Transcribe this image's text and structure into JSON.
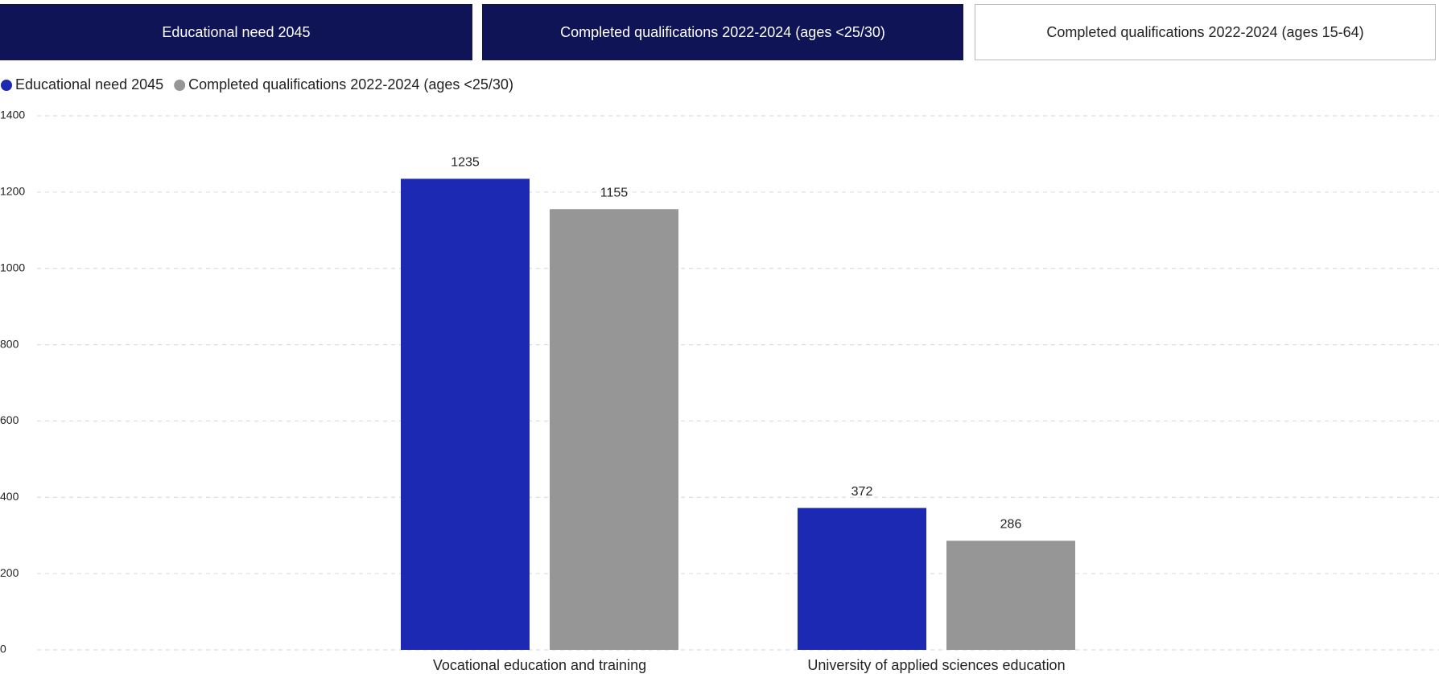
{
  "tabs": [
    "Educational need 2045",
    "Completed qualifications 2022-2024 (ages <25/30)",
    "Completed qualifications 2022-2024 (ages 15-64)"
  ],
  "chart_data": {
    "type": "bar",
    "categories": [
      "Vocational education and training",
      "University of applied sciences education"
    ],
    "series": [
      {
        "name": "Educational need 2045",
        "color": "#1c29b3",
        "values": [
          1235,
          372
        ]
      },
      {
        "name": "Completed qualifications 2022-2024 (ages <25/30)",
        "color": "#969696",
        "values": [
          1155,
          286
        ]
      }
    ],
    "ylim": [
      0,
      1400
    ],
    "yticks": [
      0,
      200,
      400,
      600,
      800,
      1000,
      1200,
      1400
    ],
    "grid": true
  }
}
